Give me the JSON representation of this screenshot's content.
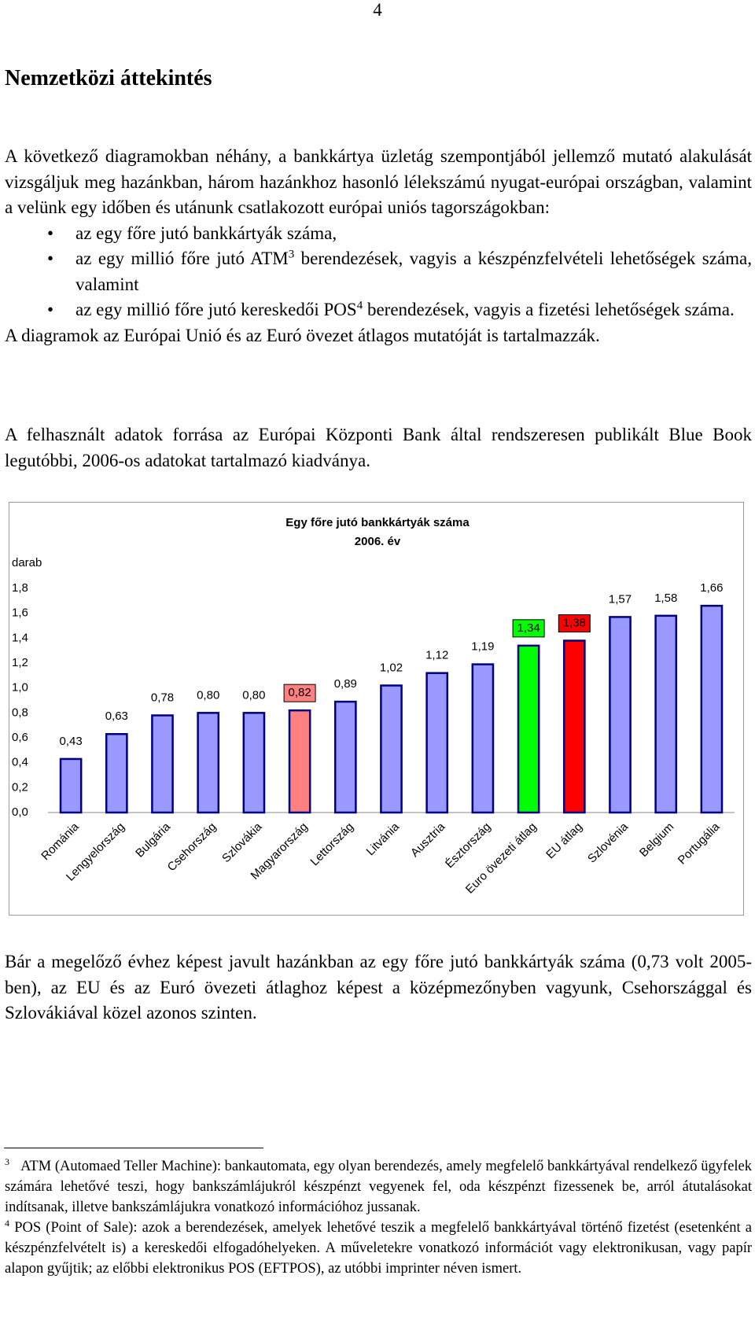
{
  "page_number": "4",
  "heading": "Nemzetközi áttekintés",
  "intro": "A következő diagramokban néhány, a bankkártya üzletág szempontjából jellemző mutató alakulását vizsgáljuk meg hazánkban, három hazánkhoz hasonló lélekszámú nyugat-európai országban, valamint a velünk egy időben és utánunk csatlakozott európai uniós tagországokban:",
  "bullets": [
    {
      "before": "az egy főre jutó bankkártyák száma,"
    },
    {
      "before": "az egy millió főre jutó ATM",
      "sup": "3",
      "after": " berendezések, vagyis a készpénzfelvételi lehetőségek száma, valamint"
    },
    {
      "before": "az egy millió főre jutó kereskedői POS",
      "sup": "4",
      "after": " berendezések, vagyis a fizetési lehetőségek száma."
    }
  ],
  "paragraph_2": "A diagramok az Európai Unió és az Euró övezet átlagos mutatóját is tartalmazzák.",
  "paragraph_3": "A felhasznált adatok forrása az Európai Központi Bank által rendszeresen publikált Blue Book legutóbbi, 2006-os adatokat tartalmazó kiadványa.",
  "chart_data": {
    "type": "bar",
    "title": "Egy főre jutó bankkártyák száma",
    "subtitle": "2006. év",
    "y_label": "darab",
    "categories": [
      "Románia",
      "Lengyelország",
      "Bulgária",
      "Csehország",
      "Szlovákia",
      "Magyarország",
      "Lettország",
      "Litvánia",
      "Ausztria",
      "Észtország",
      "Euro övezeti átlag",
      "EU átlag",
      "Szlovénia",
      "Belgium",
      "Portugália"
    ],
    "values": [
      0.43,
      0.63,
      0.78,
      0.8,
      0.8,
      0.82,
      0.89,
      1.02,
      1.12,
      1.19,
      1.34,
      1.38,
      1.57,
      1.58,
      1.66
    ],
    "value_labels": [
      "0,43",
      "0,63",
      "0,78",
      "0,80",
      "0,80",
      "0,82",
      "0,89",
      "1,02",
      "1,12",
      "1,19",
      "1,34",
      "1,38",
      "1,57",
      "1,58",
      "1,66"
    ],
    "color": "#9999ff",
    "colors": [
      "#9999ff",
      "#9999ff",
      "#9999ff",
      "#9999ff",
      "#9999ff",
      "#ff8080",
      "#9999ff",
      "#9999ff",
      "#9999ff",
      "#9999ff",
      "#00ff00",
      "#ff0000",
      "#9999ff",
      "#9999ff",
      "#9999ff"
    ],
    "ylim": [
      0,
      1.8
    ],
    "yticks": [
      {
        "value": 0,
        "label": "0,0"
      },
      {
        "value": 0.2,
        "label": "0,2"
      },
      {
        "value": 0.4,
        "label": "0,4"
      },
      {
        "value": 0.6,
        "label": "0,6"
      },
      {
        "value": 0.8,
        "label": "0,8"
      },
      {
        "value": 1.0,
        "label": "1,0"
      },
      {
        "value": 1.2,
        "label": "1,2"
      },
      {
        "value": 1.4,
        "label": "1,4"
      },
      {
        "value": 1.6,
        "label": "1,6"
      },
      {
        "value": 1.8,
        "label": "1,8"
      }
    ],
    "grid": false
  },
  "paragraph_4": "Bár a megelőző évhez képest javult hazánkban az egy főre jutó bankkártyák száma (0,73 volt 2005-ben), az EU és az Euró övezeti átlaghoz képest a középmezőnyben vagyunk, Csehországgal és Szlovákiával közel azonos szinten.",
  "footnotes": [
    {
      "mark": "3",
      "text": "ATM (Automaed Teller Machine): bankautomata, egy olyan berendezés, amely megfelelő bankkártyával rendelkező ügyfelek számára lehetővé teszi, hogy bankszámlájukról készpénzt vegyenek fel, oda készpénzt fizessenek be, arról átutalásokat indítsanak, illetve bankszámlájukra vonatkozó információhoz jussanak."
    },
    {
      "mark": "4",
      "text": "POS (Point of Sale): azok a berendezések, amelyek lehetővé teszik a megfelelő bankkártyával történő fizetést (esetenként a készpénzfelvételt is) a kereskedői elfogadóhelyeken. A műveletekre vonatkozó információt vagy elektronikusan, vagy papír alapon gyűjtik; az előbbi elektronikus POS (EFTPOS), az utóbbi imprinter néven ismert."
    }
  ]
}
